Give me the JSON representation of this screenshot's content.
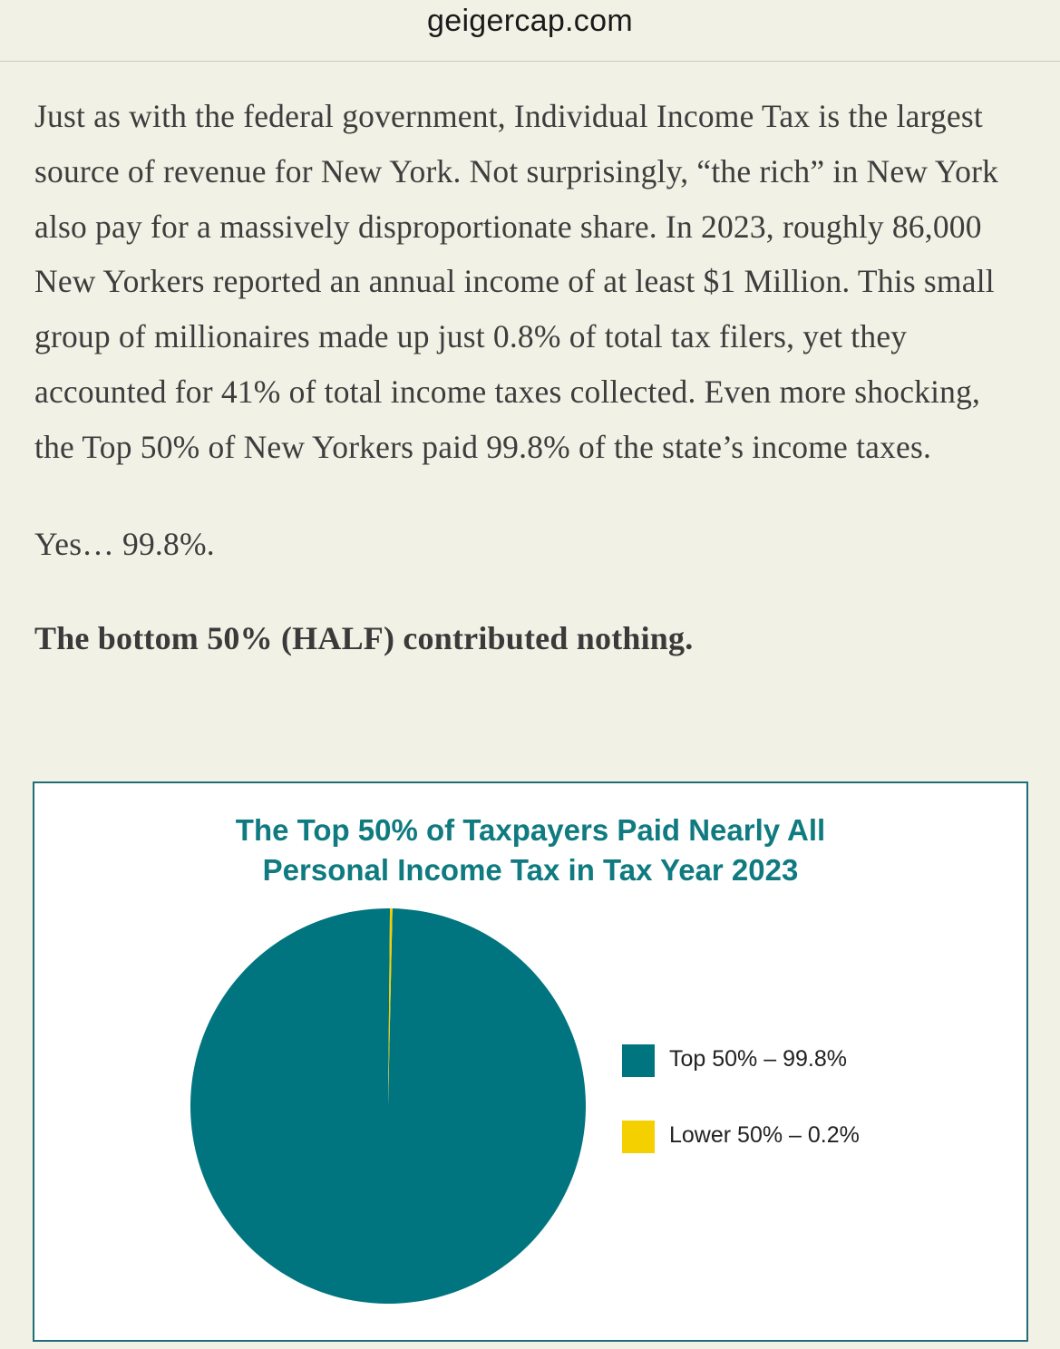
{
  "browser": {
    "url": "geigercap.com"
  },
  "article": {
    "paragraph_1": "Just as with the federal government, Individual Income Tax is the largest source of revenue for New York. Not surprisingly, “the rich” in New York also pay for a massively disproportionate share. In 2023, roughly 86,000 New Yorkers reported an annual income of at least $1 Million. This small group of millionaires made up just 0.8% of total tax filers, yet they accounted for 41% of total income taxes collected. Even more shocking, the Top 50% of New Yorkers paid 99.8% of the state’s income taxes.",
    "paragraph_2": "Yes… 99.8%.",
    "paragraph_3": "The bottom 50% (HALF) contributed nothing."
  },
  "chart_data": {
    "type": "pie",
    "title_line_1": "The Top 50% of Taxpayers Paid Nearly All",
    "title_line_2": "Personal Income Tax in Tax Year 2023",
    "slices": [
      {
        "name": "Top 50%",
        "value": 99.8,
        "color": "#007580",
        "legend_label": "Top 50% – 99.8%"
      },
      {
        "name": "Lower 50%",
        "value": 0.2,
        "color": "#f5d000",
        "legend_label": "Lower 50% – 0.2%"
      }
    ],
    "legend_position": "right",
    "colors": {
      "title": "#0f7a80",
      "border": "#1f6d78"
    }
  }
}
